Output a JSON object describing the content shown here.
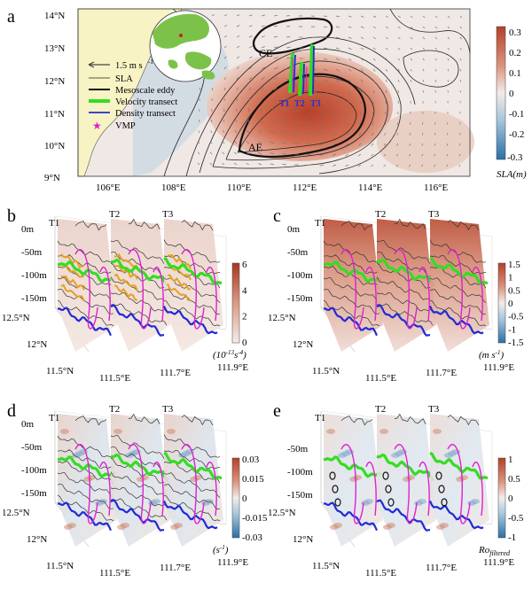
{
  "panels": {
    "a": {
      "label": "a",
      "y_ticks": [
        "14°N",
        "13°N",
        "12°N",
        "11°N",
        "10°N",
        "9°N"
      ],
      "x_ticks": [
        "106°E",
        "108°E",
        "110°E",
        "112°E",
        "114°E",
        "116°E"
      ],
      "colorbar_ticks": [
        "0.3",
        "0.2",
        "0.1",
        "0",
        "-0.1",
        "-0.2",
        "-0.3"
      ],
      "colorbar_title": "SLA(m)",
      "eddy_labels": [
        "CE",
        "AE"
      ],
      "transect_labels": [
        "T1",
        "T2",
        "T3"
      ],
      "legend": {
        "scale_arrow": "1.5 m s",
        "scale_arrow_exp": "-1",
        "items": [
          "SLA",
          "Mesoscale eddy",
          "Velocity transect",
          "Density transect",
          "VMP"
        ]
      }
    },
    "b": {
      "label": "b",
      "transects": [
        "T1",
        "T2",
        "T3"
      ],
      "depth_ticks": [
        "0m",
        "-50m",
        "-100m",
        "-150m"
      ],
      "lat_ticks": [
        "12.5°N",
        "12°N",
        "11.5°N"
      ],
      "lon_ticks": [
        "111.5°E",
        "111.7°E",
        "111.9°E"
      ],
      "colorbar_ticks": [
        "6",
        "4",
        "2",
        "0"
      ],
      "colorbar_title_base": "(10",
      "colorbar_title_exp1": "-13",
      "colorbar_title_mid": "s",
      "colorbar_title_exp2": "-4",
      "colorbar_title_end": ")"
    },
    "c": {
      "label": "c",
      "transects": [
        "T1",
        "T2",
        "T3"
      ],
      "depth_ticks": [
        "0m",
        "-50m",
        "-100m",
        "-150m"
      ],
      "lat_ticks": [
        "12.5°N",
        "12°N",
        "11.5°N"
      ],
      "lon_ticks": [
        "111.5°E",
        "111.7°E",
        "111.9°E"
      ],
      "colorbar_ticks": [
        "1.5",
        "1",
        "0.5",
        "0",
        "-0.5",
        "-1",
        "-1.5"
      ],
      "colorbar_title_base": "(m s",
      "colorbar_title_exp": "-1",
      "colorbar_title_end": ")"
    },
    "d": {
      "label": "d",
      "transects": [
        "T1",
        "T2",
        "T3"
      ],
      "depth_ticks": [
        "0m",
        "-50m",
        "-100m",
        "-150m"
      ],
      "lat_ticks": [
        "12.5°N",
        "12°N",
        "11.5°N"
      ],
      "lon_ticks": [
        "111.5°E",
        "111.7°E",
        "111.9°E"
      ],
      "colorbar_ticks": [
        "0.03",
        "0.015",
        "0",
        "-0.015",
        "-0.03"
      ],
      "colorbar_title_base": "(s",
      "colorbar_title_exp": "-1",
      "colorbar_title_end": ")"
    },
    "e": {
      "label": "e",
      "transects": [
        "T1",
        "T2",
        "T3"
      ],
      "depth_ticks": [
        "-50m",
        "-100m",
        "-150m"
      ],
      "lat_ticks": [
        "12.5°N",
        "12°N",
        "11.5°N"
      ],
      "lon_ticks": [
        "111.5°E",
        "111.7°E",
        "111.9°E"
      ],
      "colorbar_ticks": [
        "1",
        "0.5",
        "0",
        "-0.5",
        "-1"
      ],
      "colorbar_title_base": "Ro",
      "colorbar_title_sub": "filtered"
    }
  },
  "colors": {
    "sla_pos": "#b5452b",
    "sla_neg": "#3a7fb5",
    "land": "#f7f3c4",
    "velocity_transect": "#33dd22",
    "density_transect": "#1f2bd6",
    "vmp": "#e020d0",
    "contour": "#222222"
  }
}
